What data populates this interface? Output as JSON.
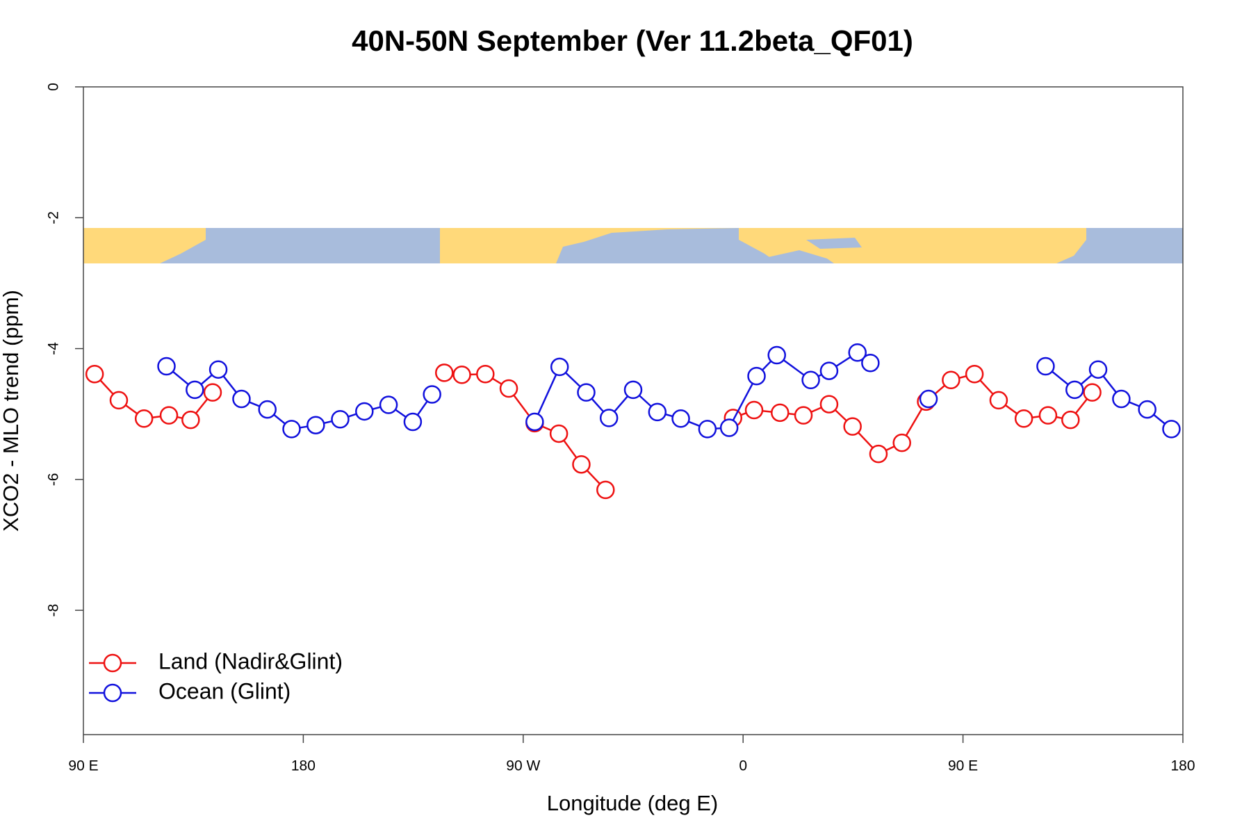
{
  "chart_data": {
    "type": "line",
    "title": "40N-50N September (Ver 11.2beta_QF01)",
    "x_label": "Longitude (deg E)",
    "y_label": "XCO2 - MLO trend (ppm)",
    "xlim": [
      90,
      540
    ],
    "ylim": [
      -9.9,
      0
    ],
    "xticks": [
      {
        "value": 90,
        "label": "90 E"
      },
      180,
      {
        "value": 270,
        "label": "90 W"
      },
      {
        "value": 360,
        "label": "0"
      },
      {
        "value": 450,
        "label": "90 E"
      },
      {
        "value": 540,
        "label": "180"
      }
    ],
    "yticks": [
      0,
      -2,
      -4,
      -6,
      -8
    ],
    "legend": "bottomleft",
    "series": [
      {
        "name": "Land (Nadir&Glint)",
        "color": "#ee1111",
        "x": [
          94.6,
          104.5,
          114.8,
          125.0,
          133.9,
          142.9,
          null,
          237.7,
          244.9,
          254.5,
          264.1,
          274.7,
          284.6,
          293.8,
          303.7,
          null,
          355.9,
          364.5,
          375.1,
          384.7,
          395.2,
          404.8,
          415.4,
          425.0,
          434.9,
          445.1,
          454.7,
          464.6,
          474.9,
          484.8,
          494.0,
          502.9
        ],
        "values": [
          -4.39,
          -4.79,
          -5.07,
          -5.02,
          -5.09,
          -4.67,
          null,
          -4.37,
          -4.4,
          -4.39,
          -4.61,
          -5.14,
          -5.3,
          -5.77,
          -6.16,
          null,
          -5.06,
          -4.94,
          -4.98,
          -5.02,
          -4.85,
          -5.19,
          -5.61,
          -5.44,
          -4.81,
          -4.48,
          -4.39,
          -4.79,
          -5.07,
          -5.02,
          -5.09,
          -4.67
        ]
      },
      {
        "name": "Ocean (Glint)",
        "color": "#1111dd",
        "x": [
          124.0,
          135.6,
          145.2,
          154.7,
          165.3,
          175.2,
          185.1,
          195.1,
          205.0,
          214.9,
          224.8,
          232.7,
          null,
          274.7,
          284.9,
          295.8,
          305.1,
          315.0,
          324.9,
          334.5,
          345.4,
          354.3,
          365.5,
          373.8,
          387.7,
          395.2,
          406.8,
          412.1,
          null,
          435.9,
          null,
          483.8,
          495.7,
          505.3,
          514.8,
          525.4,
          535.3
        ],
        "values": [
          -4.27,
          -4.63,
          -4.32,
          -4.77,
          -4.93,
          -5.23,
          -5.17,
          -5.08,
          -4.96,
          -4.86,
          -5.12,
          -4.7,
          null,
          -5.12,
          -4.28,
          -4.67,
          -5.06,
          -4.63,
          -4.97,
          -5.07,
          -5.23,
          -5.21,
          -4.42,
          -4.1,
          -4.48,
          -4.34,
          -4.06,
          -4.22,
          null,
          -4.77,
          null,
          -4.27,
          -4.63,
          -4.32,
          -4.77,
          -4.93,
          -5.23
        ]
      }
    ]
  }
}
